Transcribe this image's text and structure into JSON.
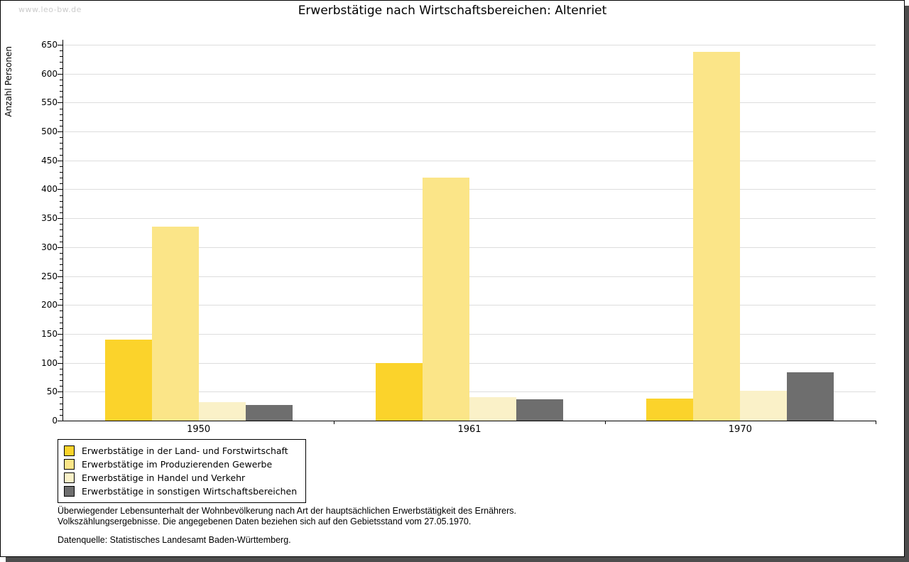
{
  "watermark": "www.leo-bw.de",
  "chart_data": {
    "type": "bar",
    "title": "Erwerbstätige nach Wirtschaftsbereichen: Altenriet",
    "ylabel": "Anzahl Personen",
    "xlabel": "",
    "ylim": [
      0,
      650
    ],
    "ytick_step": 50,
    "yminor_step": 10,
    "grid": "horizontal-major",
    "legend_position": "bottom-left",
    "categories": [
      "1950",
      "1961",
      "1970"
    ],
    "series": [
      {
        "name": "Erwerbstätige in der Land- und Forstwirtschaft",
        "color": "#FBD32B",
        "values": [
          140,
          100,
          38
        ]
      },
      {
        "name": "Erwerbstätige im Produzierenden Gewerbe",
        "color": "#FBE588",
        "values": [
          335,
          420,
          638
        ]
      },
      {
        "name": "Erwerbstätige in Handel und Verkehr",
        "color": "#FAF1C8",
        "values": [
          32,
          40,
          52
        ]
      },
      {
        "name": "Erwerbstätige in sonstigen Wirtschaftsbereichen",
        "color": "#6E6E6E",
        "values": [
          27,
          37,
          84
        ]
      }
    ]
  },
  "footnotes": {
    "line1": "Überwiegender Lebensunterhalt der Wohnbevölkerung nach Art der hauptsächlichen Erwerbstätigkeit des Ernährers.",
    "line2": "Volkszählungsergebnisse. Die angegebenen Daten beziehen sich auf den Gebietsstand vom 27.05.1970.",
    "source": "Datenquelle: Statistisches Landesamt Baden-Württemberg."
  },
  "colors": {
    "grid": "#dddddd",
    "axis": "#000000",
    "watermark": "#cccccc",
    "frame_shadow": "#4d4d4d",
    "background": "#ffffff"
  }
}
